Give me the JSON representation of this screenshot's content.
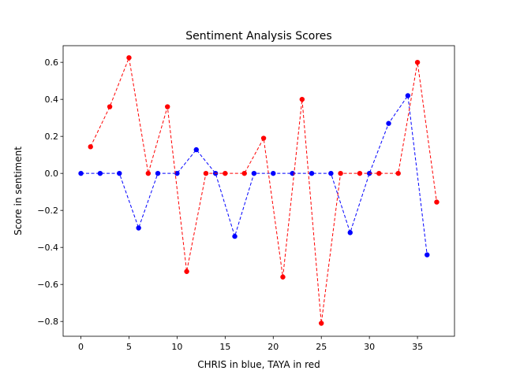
{
  "chart_data": {
    "type": "line",
    "title": "Sentiment Analysis Scores",
    "xlabel": "CHRIS in blue, TAYA in red",
    "ylabel": "Score in sentiment",
    "xlim": [
      -1.85,
      38.85
    ],
    "ylim": [
      -0.88,
      0.69
    ],
    "grid": false,
    "x_ticks": [
      0,
      5,
      10,
      15,
      20,
      25,
      30,
      35
    ],
    "x_tick_labels": [
      "0",
      "5",
      "10",
      "15",
      "20",
      "25",
      "30",
      "35"
    ],
    "y_ticks": [
      -0.8,
      -0.6,
      -0.4,
      -0.2,
      0.0,
      0.2,
      0.4,
      0.6
    ],
    "y_tick_labels": [
      "−0.8",
      "−0.6",
      "−0.4",
      "−0.2",
      "0.0",
      "0.2",
      "0.4",
      "0.6"
    ],
    "series": [
      {
        "color": "#0000ff",
        "x": [
          0,
          2,
          4,
          6,
          8,
          10,
          12,
          14,
          16,
          18,
          20,
          22,
          24,
          26,
          28,
          30,
          32,
          34,
          36
        ],
        "values": [
          0.0,
          0.0,
          0.0,
          -0.295,
          0.0,
          0.0,
          0.128,
          0.0,
          -0.34,
          0.0,
          0.0,
          0.0,
          0.0,
          0.0,
          -0.32,
          0.0,
          0.27,
          0.42,
          -0.44
        ]
      },
      {
        "color": "#ff0000",
        "x": [
          1,
          3,
          5,
          7,
          9,
          11,
          13,
          15,
          17,
          19,
          21,
          23,
          25,
          27,
          29,
          31,
          33,
          35,
          37
        ],
        "values": [
          0.144,
          0.36,
          0.625,
          0.0,
          0.36,
          -0.53,
          0.0,
          0.0,
          0.0,
          0.19,
          -0.56,
          0.4,
          -0.81,
          0.0,
          0.0,
          0.0,
          0.0,
          0.6,
          -0.155
        ]
      }
    ]
  }
}
